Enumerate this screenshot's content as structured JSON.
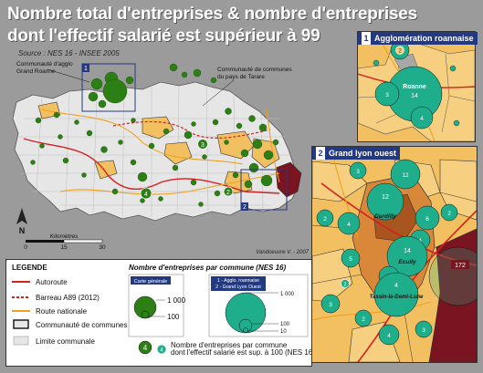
{
  "title": {
    "line1": "Nombre total d'entreprises & nombre d'entreprises",
    "line2": "dont l'effectif salarié est supérieur à 99"
  },
  "source": "Source : NES 16 - INSEE 2005",
  "main_map": {
    "box_label_1": "1",
    "box_label_2": "2",
    "annotation_roanne": [
      "Communauté d'agglo",
      "Grand Roanne"
    ],
    "annotation_tarare": [
      "Communauté de communes",
      "du pays de Tarare"
    ],
    "north": "N",
    "scale": {
      "title": "Kilomètres",
      "ticks": [
        "0",
        "15",
        "30"
      ]
    },
    "credit": "Vandoeuvre V. - 2007",
    "symbol_numbers": [
      "4",
      "3",
      "2"
    ]
  },
  "legend": {
    "title": "LEGENDE",
    "items": [
      {
        "label": "Autoroute",
        "color": "#d62020"
      },
      {
        "label": "Barreau A89 (2012)",
        "color": "#d62020"
      },
      {
        "label": "Route nationale",
        "color": "#f0a020"
      },
      {
        "label": "Communauté de communes"
      },
      {
        "label": "Limite communale"
      }
    ],
    "count_title": "Nombre d'entreprises par commune (NES 16)",
    "carte_generale": "Carte générale",
    "insets_label": [
      "1 - Agglo. roannaise",
      "2 - Grand Lyon Ouest"
    ],
    "general_values": [
      "1 000",
      "100"
    ],
    "inset_values": [
      "1 000",
      "100",
      "10"
    ],
    "symbol_number": "4",
    "symbol_caption": [
      "Nombre d'entreprises par commune",
      "dont l'effectif salarié est sup. à 100 (NES 16)"
    ]
  },
  "inset1": {
    "number": "1",
    "title": "Agglomération roannaise",
    "city": "Roanne",
    "values": [
      "14",
      "2",
      "3",
      "4"
    ]
  },
  "inset2": {
    "number": "2",
    "title": "Grand lyon ouest",
    "labels": [
      "Dardilly",
      "Ecully",
      "Tassin-la-Demi-Lune"
    ],
    "values": [
      "12",
      "3",
      "2",
      "4",
      "2",
      "12",
      "6",
      "4",
      "14",
      "4",
      "5",
      "4",
      "3",
      "2",
      "2",
      "3",
      "4"
    ],
    "lyon_value": "172"
  },
  "colors": {
    "green_symbol": "#2c7f14",
    "teal_symbol": "#1fae8c",
    "community_fill": "#f2c060",
    "lyon_dark": "#7a1420",
    "inset_header": "#233a82"
  }
}
